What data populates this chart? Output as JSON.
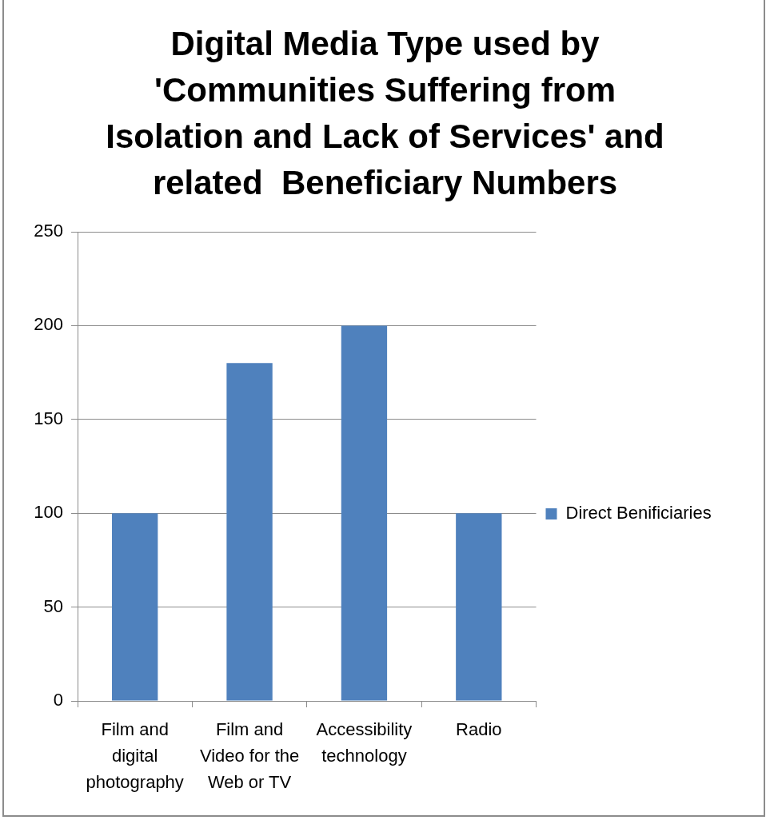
{
  "chart_data": {
    "type": "bar",
    "title": "Digital Media Type used by 'Communities Suffering from Isolation and Lack of Services' and related  Beneficiary Numbers",
    "categories": [
      "Film and digital photography",
      "Film and Video for the Web or TV",
      "Accessibility technology",
      "Radio"
    ],
    "series": [
      {
        "name": "Direct Benificiaries",
        "color": "#4f81bd",
        "values": [
          100,
          180,
          200,
          100
        ]
      }
    ],
    "ylim": [
      0,
      250
    ],
    "yticks": [
      0,
      50,
      100,
      150,
      200,
      250
    ],
    "grid": "y",
    "legend": "right"
  }
}
